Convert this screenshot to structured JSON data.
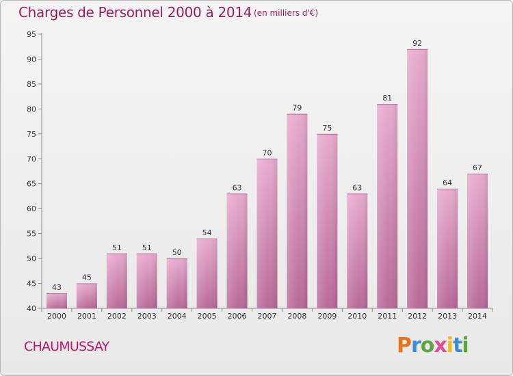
{
  "header": {
    "title": "Charges de Personnel 2000 à 2014",
    "subtitle": "(en milliers d'€)"
  },
  "footer": {
    "commune": "CHAUMUSSAY",
    "brand": "Proxiti"
  },
  "colors": {
    "bar_light": "#e8abcd",
    "bar_dark": "#b86a98",
    "title": "#a01a5a",
    "brand_letters": [
      "#e8731a",
      "#3b8fd8",
      "#5aa83c",
      "#e34a9a",
      "#f2b81c",
      "#3b8fd8",
      "#5aa83c"
    ]
  },
  "chart_data": {
    "type": "bar",
    "title": "Charges de Personnel 2000 à 2014",
    "subtitle": "(en milliers d'€)",
    "categories": [
      "2000",
      "2001",
      "2002",
      "2003",
      "2004",
      "2005",
      "2006",
      "2007",
      "2008",
      "2009",
      "2010",
      "2011",
      "2012",
      "2013",
      "2014"
    ],
    "values": [
      43,
      45,
      51,
      51,
      50,
      54,
      63,
      70,
      79,
      75,
      63,
      81,
      92,
      64,
      67
    ],
    "ylim": [
      40,
      95
    ],
    "yticks": [
      40,
      45,
      50,
      55,
      60,
      65,
      70,
      75,
      80,
      85,
      90,
      95
    ],
    "grid": false,
    "legend": "none"
  }
}
